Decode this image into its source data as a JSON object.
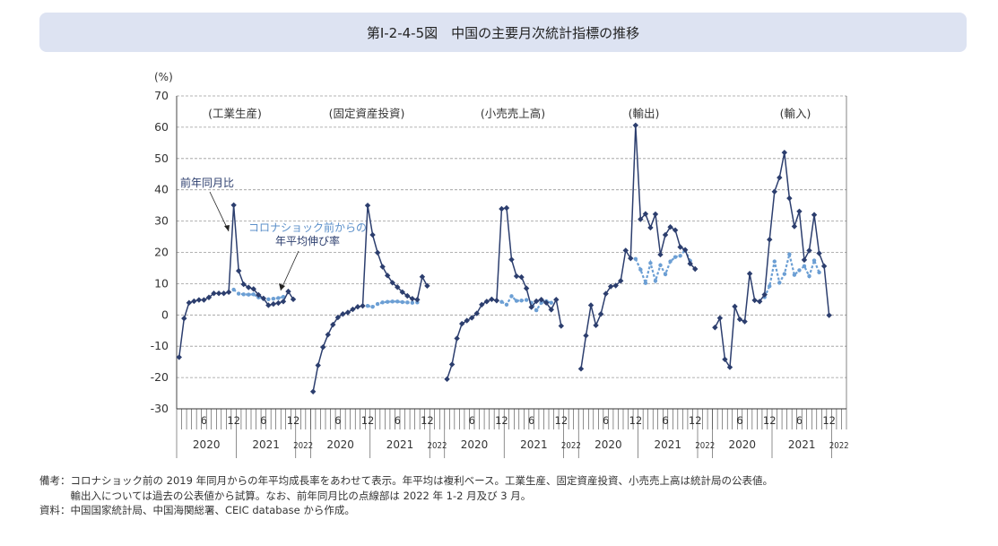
{
  "title": "第Ⅰ-2-4-5図　中国の主要月次統計指標の推移",
  "chart_data": {
    "type": "line",
    "y_unit": "(%)",
    "ylim": [
      -30,
      70
    ],
    "y_ticks": [
      70,
      60,
      50,
      40,
      30,
      20,
      10,
      0,
      -10,
      -20,
      -30
    ],
    "grid": "horizontal dashed",
    "panel_month_ticks": [
      "6",
      "12",
      "6",
      "12"
    ],
    "panel_year_labels": [
      "2020",
      "2021",
      "2022"
    ],
    "annotations": {
      "yoy": "前年同月比",
      "avg": [
        "コロナショック前からの",
        "年平均伸び率"
      ]
    },
    "panels": [
      {
        "name": "(工業生産)",
        "yoy": [
          -13.5,
          -1.1,
          3.9,
          4.4,
          4.8,
          4.8,
          5.6,
          6.9,
          6.9,
          6.9,
          7.3,
          35.1,
          14.1,
          9.8,
          8.8,
          8.3,
          6.4,
          5.3,
          3.1,
          3.5,
          3.8,
          4.3,
          7.5,
          5.0
        ],
        "avg": [
          null,
          null,
          null,
          null,
          null,
          null,
          null,
          null,
          null,
          null,
          null,
          8.1,
          6.8,
          6.6,
          6.5,
          6.6,
          5.6,
          5.2,
          5.0,
          5.2,
          5.4,
          5.8
        ]
      },
      {
        "name": "(固定資産投資)",
        "yoy": [
          -24.5,
          -16.1,
          -10.3,
          -6.3,
          -3.1,
          -0.8,
          0.3,
          0.8,
          1.8,
          2.6,
          2.9,
          35.0,
          25.6,
          19.9,
          15.4,
          12.6,
          10.3,
          8.9,
          7.3,
          6.1,
          5.2,
          4.9,
          12.2,
          9.3
        ],
        "avg": [
          null,
          null,
          null,
          null,
          null,
          null,
          null,
          null,
          null,
          null,
          null,
          2.9,
          2.6,
          3.5,
          4.0,
          4.2,
          4.3,
          4.3,
          4.1,
          4.0,
          3.9,
          4.0
        ]
      },
      {
        "name": "(小売売上高)",
        "yoy": [
          -20.5,
          -15.8,
          -7.5,
          -2.8,
          -1.8,
          -0.9,
          0.5,
          3.3,
          4.3,
          5.0,
          4.6,
          33.9,
          34.2,
          17.7,
          12.4,
          12.1,
          8.5,
          2.5,
          4.4,
          4.9,
          3.9,
          1.7,
          4.9,
          -3.5
        ],
        "avg": [
          null,
          null,
          null,
          null,
          null,
          null,
          null,
          null,
          null,
          null,
          null,
          4.2,
          3.3,
          6.0,
          4.5,
          4.6,
          4.8,
          3.9,
          1.5,
          3.9,
          4.4,
          3.9
        ]
      },
      {
        "name": "(輸出)",
        "yoy": [
          -17.2,
          -6.6,
          3.1,
          -3.3,
          0.3,
          6.8,
          9.1,
          9.4,
          10.9,
          20.6,
          18.1,
          60.6,
          30.6,
          32.3,
          27.9,
          32.2,
          19.3,
          25.6,
          28.1,
          27.1,
          21.7,
          20.8,
          16.4,
          14.7
        ],
        "avg": [
          null,
          null,
          null,
          null,
          null,
          null,
          null,
          null,
          null,
          null,
          null,
          17.9,
          14.5,
          10.2,
          16.6,
          10.9,
          15.9,
          13.0,
          17.1,
          18.5,
          18.9,
          20.8,
          17.3
        ]
      },
      {
        "name": "(輸入)",
        "yoy": [
          -4.0,
          -1.0,
          -14.2,
          -16.7,
          2.7,
          -1.4,
          -2.1,
          13.2,
          4.7,
          4.3,
          6.5,
          24.1,
          39.4,
          43.9,
          51.9,
          37.3,
          28.3,
          33.1,
          17.6,
          20.6,
          32.0,
          19.7,
          15.6,
          -0.1
        ],
        "avg": [
          null,
          null,
          null,
          null,
          null,
          null,
          null,
          null,
          null,
          null,
          5.7,
          9.2,
          17.1,
          10.3,
          13.1,
          19.4,
          12.8,
          14.3,
          15.6,
          12.4,
          17.4,
          13.6
        ]
      }
    ]
  },
  "notes": [
    {
      "head": "備考：",
      "lines": [
        "コロナショック前の 2019 年同月からの年平均成長率をあわせて表示。年平均は複利ベース。工業生産、固定資産投資、小売売上高は統計局の公表値。",
        "輸出入については過去の公表値から試算。なお、前年同月比の点線部は 2022 年 1-2 月及び 3 月。"
      ]
    },
    {
      "head": "資料：",
      "lines": [
        "中国国家統計局、中国海関総署、CEIC database から作成。"
      ]
    }
  ],
  "colors": {
    "yoy_line": "#2c3e6e",
    "avg_line": "#6c9fd4",
    "grid": "#9a9a9a",
    "title_bg": "#dde3f2"
  }
}
